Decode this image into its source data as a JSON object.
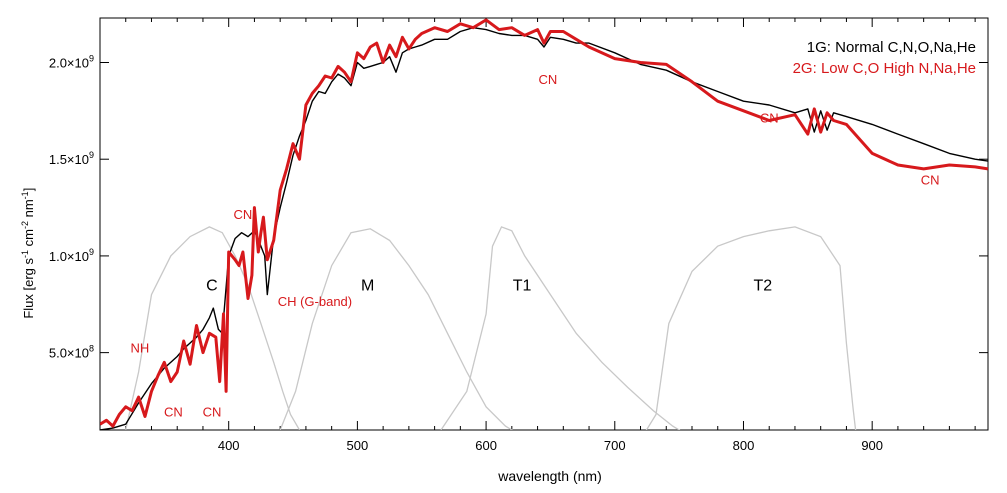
{
  "chart_data": {
    "type": "line",
    "xlabel": "wavelength (nm)",
    "ylabel": "Flux [erg s-1 cm-2 nm-1]",
    "xlim": [
      300,
      990
    ],
    "ylim": [
      100000000.0,
      2230000000.0
    ],
    "x_ticks": [
      400,
      500,
      600,
      700,
      800,
      900
    ],
    "y_ticks": [
      {
        "value": 500000000.0,
        "mantissa": "5.0",
        "exp": "8"
      },
      {
        "value": 1000000000.0,
        "mantissa": "1.0",
        "exp": "9"
      },
      {
        "value": 1500000000.0,
        "mantissa": "1.5",
        "exp": "9"
      },
      {
        "value": 2000000000.0,
        "mantissa": "2.0",
        "exp": "9"
      }
    ],
    "legend": {
      "placement": "top-right",
      "entries": [
        {
          "label": "1G: Normal C,N,O,Na,He",
          "color": "#000000"
        },
        {
          "label": "2G: Low C,O  High N,Na,He",
          "color": "#d7191c"
        }
      ]
    },
    "series": [
      {
        "name": "1G: Normal C,N,O,Na,He",
        "color": "#000000",
        "x": [
          300,
          310,
          320,
          330,
          340,
          350,
          360,
          365,
          370,
          375,
          380,
          385,
          388,
          392,
          395,
          400,
          405,
          410,
          415,
          420,
          425,
          428,
          430,
          435,
          440,
          445,
          450,
          455,
          460,
          465,
          470,
          475,
          480,
          485,
          490,
          495,
          500,
          505,
          510,
          515,
          520,
          525,
          530,
          535,
          540,
          545,
          550,
          560,
          570,
          580,
          590,
          600,
          610,
          620,
          630,
          640,
          645,
          650,
          660,
          670,
          680,
          700,
          720,
          740,
          760,
          780,
          800,
          820,
          840,
          850,
          855,
          860,
          865,
          870,
          880,
          900,
          920,
          940,
          960,
          980,
          990
        ],
        "y": [
          100000000.0,
          110000000.0,
          130000000.0,
          240000000.0,
          340000000.0,
          420000000.0,
          480000000.0,
          520000000.0,
          550000000.0,
          580000000.0,
          620000000.0,
          680000000.0,
          730000000.0,
          620000000.0,
          600000000.0,
          1000000000.0,
          1090000000.0,
          1120000000.0,
          1100000000.0,
          1130000000.0,
          1050000000.0,
          1000000000.0,
          800000000.0,
          1100000000.0,
          1250000000.0,
          1380000000.0,
          1520000000.0,
          1620000000.0,
          1700000000.0,
          1800000000.0,
          1850000000.0,
          1840000000.0,
          1900000000.0,
          1940000000.0,
          1920000000.0,
          1880000000.0,
          2000000000.0,
          1970000000.0,
          1980000000.0,
          1990000000.0,
          2000000000.0,
          2030000000.0,
          1950000000.0,
          2050000000.0,
          2070000000.0,
          2080000000.0,
          2090000000.0,
          2120000000.0,
          2120000000.0,
          2160000000.0,
          2180000000.0,
          2170000000.0,
          2150000000.0,
          2140000000.0,
          2140000000.0,
          2120000000.0,
          2080000000.0,
          2130000000.0,
          2120000000.0,
          2100000000.0,
          2100000000.0,
          2050000000.0,
          1990000000.0,
          1960000000.0,
          1900000000.0,
          1850000000.0,
          1800000000.0,
          1780000000.0,
          1740000000.0,
          1760000000.0,
          1640000000.0,
          1750000000.0,
          1650000000.0,
          1740000000.0,
          1720000000.0,
          1680000000.0,
          1630000000.0,
          1580000000.0,
          1530000000.0,
          1500000000.0,
          1490000000.0
        ]
      },
      {
        "name": "2G: Low C,O  High N,Na,He",
        "color": "#d7191c",
        "x": [
          300,
          305,
          310,
          315,
          320,
          325,
          330,
          335,
          340,
          345,
          350,
          355,
          360,
          365,
          370,
          375,
          380,
          385,
          390,
          393,
          396,
          398,
          400,
          405,
          408,
          411,
          415,
          418,
          420,
          423,
          425,
          427,
          430,
          435,
          440,
          445,
          450,
          455,
          460,
          465,
          470,
          475,
          480,
          485,
          490,
          495,
          500,
          505,
          510,
          515,
          520,
          525,
          530,
          535,
          540,
          545,
          550,
          560,
          570,
          580,
          590,
          600,
          610,
          620,
          630,
          640,
          645,
          650,
          660,
          670,
          680,
          700,
          720,
          740,
          760,
          780,
          800,
          820,
          840,
          850,
          855,
          860,
          865,
          870,
          880,
          900,
          920,
          940,
          960,
          980,
          990
        ],
        "y": [
          130000000.0,
          150000000.0,
          120000000.0,
          180000000.0,
          220000000.0,
          200000000.0,
          270000000.0,
          170000000.0,
          300000000.0,
          380000000.0,
          450000000.0,
          350000000.0,
          400000000.0,
          560000000.0,
          440000000.0,
          640000000.0,
          500000000.0,
          600000000.0,
          580000000.0,
          350000000.0,
          700000000.0,
          300000000.0,
          1020000000.0,
          980000000.0,
          950000000.0,
          1020000000.0,
          780000000.0,
          900000000.0,
          1250000000.0,
          1020000000.0,
          1120000000.0,
          1200000000.0,
          980000000.0,
          1080000000.0,
          1340000000.0,
          1450000000.0,
          1580000000.0,
          1500000000.0,
          1780000000.0,
          1840000000.0,
          1880000000.0,
          1930000000.0,
          1920000000.0,
          1980000000.0,
          1950000000.0,
          1900000000.0,
          2050000000.0,
          2020000000.0,
          2080000000.0,
          2100000000.0,
          2000000000.0,
          2090000000.0,
          2030000000.0,
          2130000000.0,
          2070000000.0,
          2120000000.0,
          2150000000.0,
          2180000000.0,
          2160000000.0,
          2200000000.0,
          2180000000.0,
          2220000000.0,
          2170000000.0,
          2180000000.0,
          2140000000.0,
          2170000000.0,
          2100000000.0,
          2160000000.0,
          2160000000.0,
          2120000000.0,
          2080000000.0,
          2020000000.0,
          2000000000.0,
          1990000000.0,
          1900000000.0,
          1800000000.0,
          1750000000.0,
          1700000000.0,
          1730000000.0,
          1630000000.0,
          1760000000.0,
          1640000000.0,
          1740000000.0,
          1700000000.0,
          1680000000.0,
          1530000000.0,
          1470000000.0,
          1450000000.0,
          1470000000.0,
          1460000000.0,
          1450000000.0
        ]
      }
    ],
    "filters": [
      {
        "name": "C",
        "x": [
          320,
          330,
          340,
          355,
          370,
          385,
          395,
          405,
          415,
          425,
          435,
          442,
          448,
          455
        ],
        "y": [
          100000000.0,
          400000000.0,
          800000000.0,
          1000000000.0,
          1100000000.0,
          1150000000.0,
          1120000000.0,
          1000000000.0,
          850000000.0,
          650000000.0,
          450000000.0,
          300000000.0,
          180000000.0,
          100000000.0
        ]
      },
      {
        "name": "M",
        "x": [
          440,
          452,
          465,
          480,
          495,
          510,
          525,
          540,
          555,
          570,
          585,
          600,
          615,
          625
        ],
        "y": [
          100000000.0,
          300000000.0,
          650000000.0,
          950000000.0,
          1120000000.0,
          1140000000.0,
          1080000000.0,
          950000000.0,
          800000000.0,
          600000000.0,
          400000000.0,
          220000000.0,
          120000000.0,
          80000000.0
        ]
      },
      {
        "name": "T1",
        "x": [
          565,
          585,
          600,
          605,
          612,
          620,
          630,
          650,
          670,
          690,
          710,
          730,
          745,
          755
        ],
        "y": [
          100000000.0,
          300000000.0,
          700000000.0,
          1050000000.0,
          1150000000.0,
          1130000000.0,
          1000000000.0,
          800000000.0,
          600000000.0,
          450000000.0,
          320000000.0,
          200000000.0,
          120000000.0,
          80000000.0
        ]
      },
      {
        "name": "T2",
        "x": [
          720,
          732,
          742,
          760,
          780,
          800,
          820,
          840,
          860,
          875,
          880,
          885,
          888
        ],
        "y": [
          50000000.0,
          180000000.0,
          650000000.0,
          920000000.0,
          1050000000.0,
          1100000000.0,
          1130000000.0,
          1150000000.0,
          1100000000.0,
          950000000.0,
          550000000.0,
          220000000.0,
          50000000.0
        ]
      }
    ],
    "annotations": [
      {
        "text": "NH",
        "x": 331,
        "y": 500000000.0,
        "color": "#d7191c",
        "size": 13
      },
      {
        "text": "CN",
        "x": 357,
        "y": 170000000.0,
        "color": "#d7191c",
        "size": 13
      },
      {
        "text": "CN",
        "x": 387,
        "y": 170000000.0,
        "color": "#d7191c",
        "size": 13
      },
      {
        "text": "CN",
        "x": 411,
        "y": 1190000000.0,
        "color": "#d7191c",
        "size": 13
      },
      {
        "text": "CH (G-band)",
        "x": 467,
        "y": 740000000.0,
        "color": "#d7191c",
        "size": 13
      },
      {
        "text": "CN",
        "x": 648,
        "y": 1890000000.0,
        "color": "#d7191c",
        "size": 13
      },
      {
        "text": "CN",
        "x": 820,
        "y": 1690000000.0,
        "color": "#d7191c",
        "size": 13
      },
      {
        "text": "CN",
        "x": 945,
        "y": 1370000000.0,
        "color": "#d7191c",
        "size": 13
      },
      {
        "text": "C",
        "x": 387,
        "y": 820000000.0,
        "color": "#000000",
        "size": 16
      },
      {
        "text": "M",
        "x": 508,
        "y": 820000000.0,
        "color": "#000000",
        "size": 16
      },
      {
        "text": "T1",
        "x": 628,
        "y": 820000000.0,
        "color": "#000000",
        "size": 16
      },
      {
        "text": "T2",
        "x": 815,
        "y": 820000000.0,
        "color": "#000000",
        "size": 16
      }
    ]
  }
}
